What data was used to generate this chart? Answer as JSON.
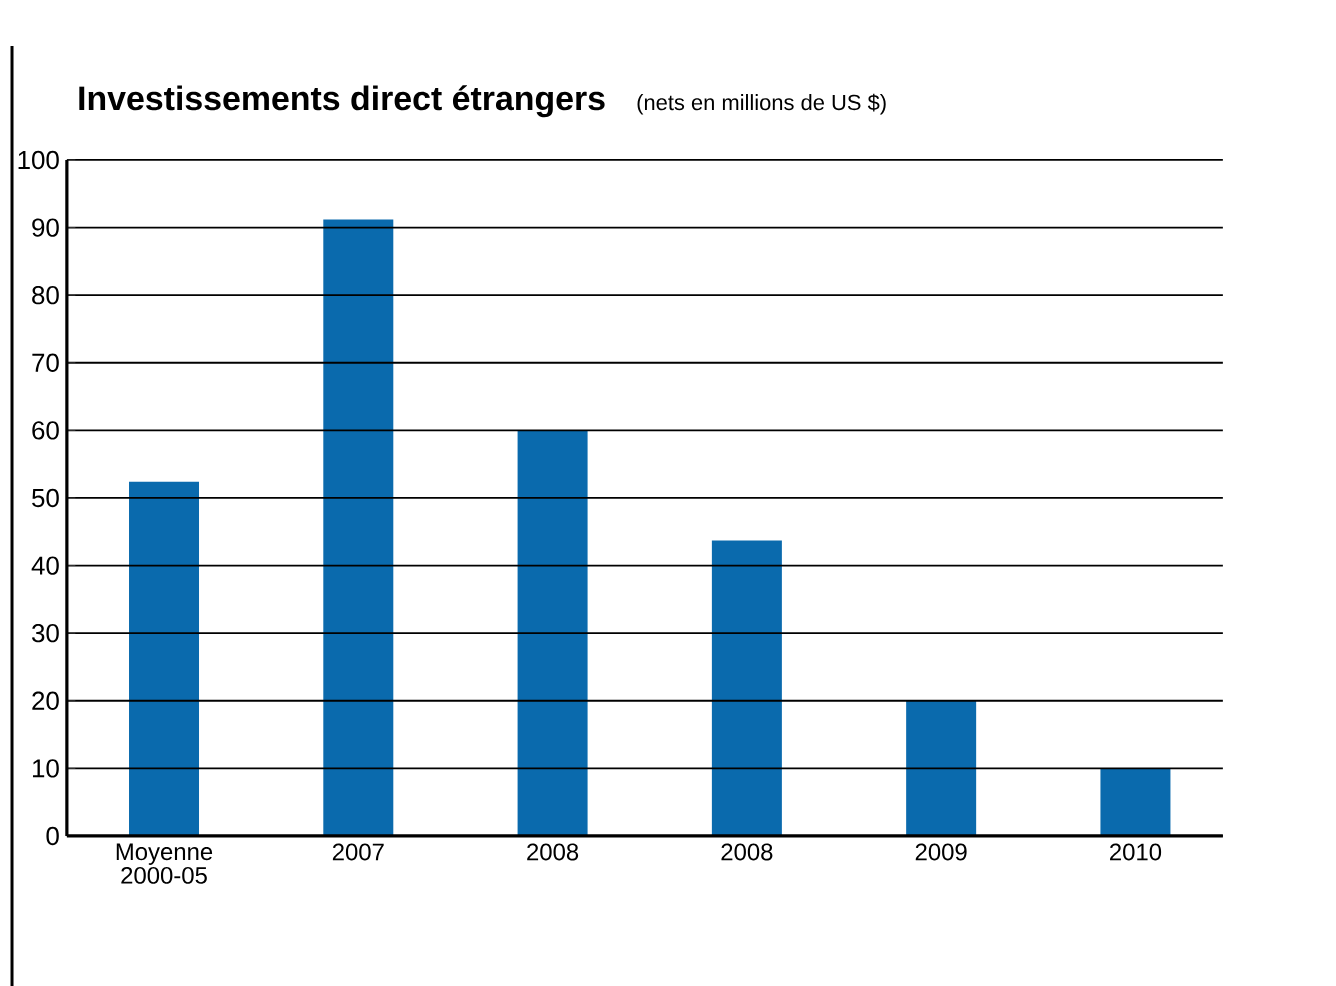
{
  "chart_data": {
    "type": "bar",
    "title": "Investissements direct étrangers",
    "subtitle": "(nets en millions de US $)",
    "categories": [
      "Moyenne 2000-05",
      "2007",
      "2008",
      "2008",
      "2009",
      "2010"
    ],
    "values": [
      52.4,
      91.2,
      60,
      43.7,
      20,
      10
    ],
    "color": "#0a6aad",
    "ylim": [
      0,
      100
    ],
    "yticks": [
      0,
      10,
      20,
      30,
      40,
      50,
      60,
      70,
      80,
      90,
      100
    ],
    "grid": "y"
  }
}
